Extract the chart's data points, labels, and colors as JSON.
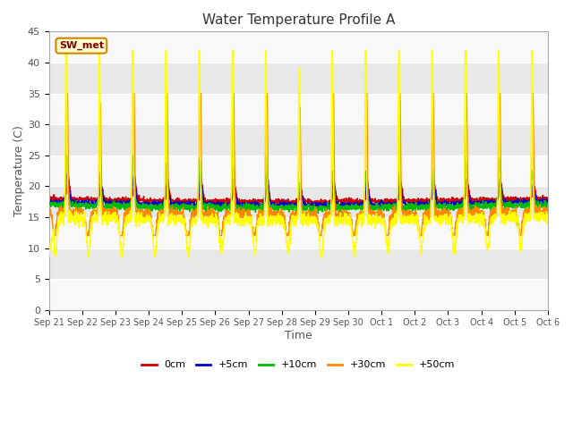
{
  "title": "Water Temperature Profile A",
  "xlabel": "Time",
  "ylabel": "Temperature (C)",
  "ylim": [
    0,
    45
  ],
  "yticks": [
    0,
    5,
    10,
    15,
    20,
    25,
    30,
    35,
    40,
    45
  ],
  "fig_bg": "#ffffff",
  "plot_bg_light": "#f0f0f0",
  "plot_bg_dark": "#e0e0e0",
  "series_colors": {
    "0cm": "#cc0000",
    "+5cm": "#0000cc",
    "+10cm": "#00bb00",
    "+30cm": "#ff8800",
    "+50cm": "#ffff00"
  },
  "x_labels": [
    "Sep 21",
    "Sep 22",
    "Sep 23",
    "Sep 24",
    "Sep 25",
    "Sep 26",
    "Sep 27",
    "Sep 28",
    "Sep 29",
    "Sep 30",
    "Oct 1",
    "Oct 2",
    "Oct 3",
    "Oct 4",
    "Oct 5",
    "Oct 6"
  ],
  "annotation_text": "SW_met",
  "annotation_color": "#800000",
  "annotation_bg": "#ffffcc",
  "annotation_border": "#cc8800"
}
